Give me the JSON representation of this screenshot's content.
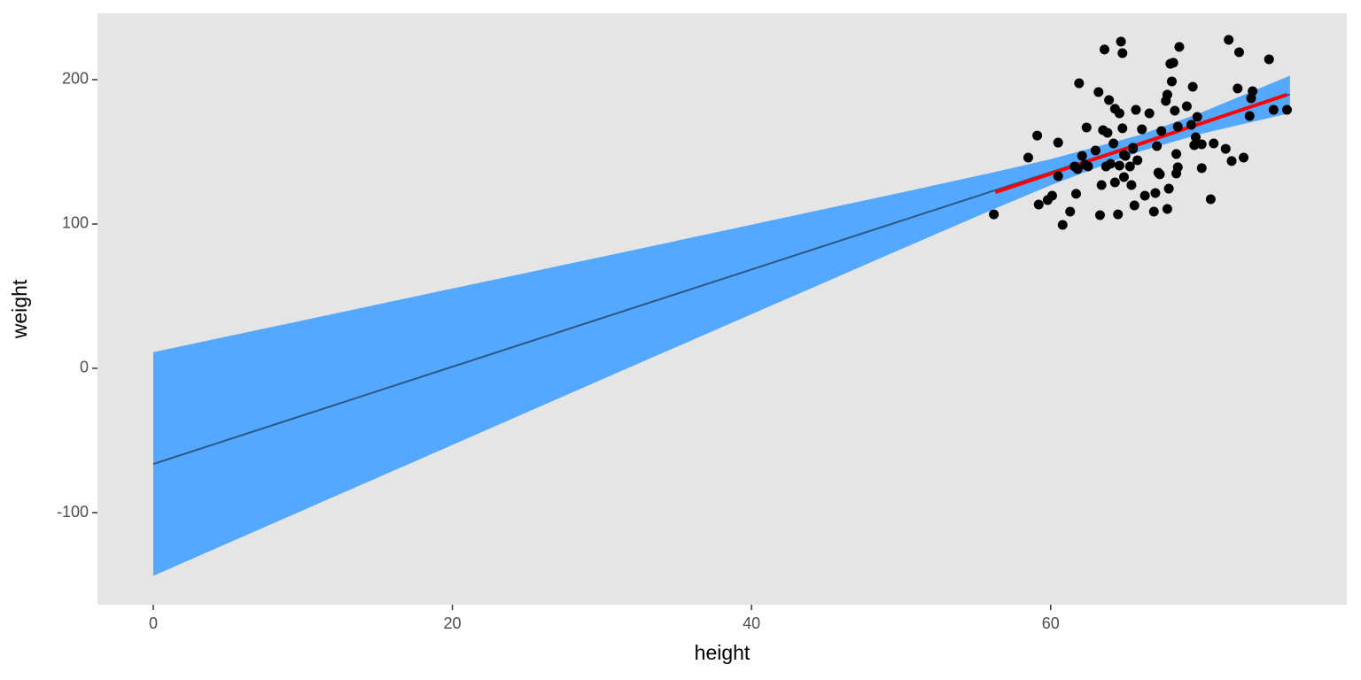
{
  "chart_data": {
    "type": "scatter",
    "xlabel": "height",
    "ylabel": "weight",
    "xlim": [
      -3.73,
      79.8
    ],
    "ylim": [
      -163.8,
      246
    ],
    "xticks": [
      0,
      20,
      40,
      60
    ],
    "yticks": [
      -100,
      0,
      100,
      200
    ],
    "background": "#e5e5e5",
    "layers": [
      {
        "type": "ribbon",
        "color": "#55a8ff",
        "x": [
          0,
          10,
          20,
          30,
          40,
          50,
          56,
          60,
          66,
          70,
          76
        ],
        "lower": [
          -143.8,
          -98.4,
          -53.1,
          -7.7,
          37.5,
          82.6,
          109.4,
          126.9,
          150.4,
          162.3,
          176.8
        ],
        "upper": [
          11.2,
          33.2,
          55.3,
          77.3,
          99.5,
          121.8,
          135.4,
          144.9,
          161.8,
          176.9,
          202.8
        ]
      },
      {
        "type": "line",
        "color": "#2a5784",
        "width": 2,
        "x": [
          0,
          76
        ],
        "values": [
          -66.3,
          189.8
        ]
      },
      {
        "type": "line",
        "color": "#ff0000",
        "width": 4,
        "x": [
          56.3,
          75.8
        ],
        "values": [
          122,
          189.6
        ]
      },
      {
        "type": "scatter",
        "color": "#000000",
        "x": [
          56.2,
          58.5,
          59.1,
          59.2,
          59.8,
          60.1,
          60.5,
          60.5,
          60.8,
          61.3,
          61.6,
          61.7,
          61.8,
          61.9,
          62.1,
          62.3,
          62.4,
          62.5,
          63.0,
          63.2,
          63.3,
          63.4,
          63.5,
          63.6,
          63.7,
          63.8,
          63.9,
          64.0,
          64.2,
          64.3,
          64.3,
          64.5,
          64.6,
          64.6,
          64.7,
          64.8,
          64.8,
          64.9,
          64.9,
          65.0,
          65.3,
          65.4,
          65.5,
          65.5,
          65.6,
          65.7,
          65.8,
          66.1,
          66.3,
          66.6,
          66.9,
          67.0,
          67.1,
          67.2,
          67.3,
          67.4,
          67.7,
          67.8,
          67.8,
          67.9,
          68.0,
          68.1,
          68.2,
          68.3,
          68.4,
          68.4,
          68.5,
          68.5,
          68.6,
          69.1,
          69.4,
          69.5,
          69.6,
          69.7,
          69.8,
          70.1,
          70.1,
          70.7,
          70.9,
          71.7,
          71.9,
          72.1,
          72.5,
          72.6,
          72.9,
          73.3,
          73.4,
          73.5,
          74.6,
          74.9,
          75.8
        ],
        "values": [
          106.7,
          146.0,
          161.3,
          113.5,
          116.6,
          119.6,
          156.4,
          133.1,
          99.4,
          108.6,
          139.9,
          120.9,
          138.0,
          197.5,
          147.2,
          141.1,
          166.9,
          139.9,
          150.9,
          191.4,
          106.1,
          127.0,
          165.0,
          220.9,
          139.9,
          163.2,
          185.9,
          141.7,
          155.8,
          128.8,
          179.8,
          106.7,
          176.7,
          140.5,
          226.4,
          218.4,
          166.3,
          147.9,
          132.5,
          147.2,
          139.9,
          127.0,
          152.8,
          152.1,
          112.9,
          179.1,
          144.2,
          165.6,
          119.6,
          176.7,
          108.6,
          121.5,
          154.0,
          135.6,
          134.4,
          164.4,
          185.3,
          110.4,
          189.6,
          124.5,
          211.0,
          198.8,
          211.7,
          178.5,
          135.0,
          148.5,
          139.3,
          167.5,
          222.7,
          181.6,
          168.7,
          195.1,
          154.6,
          160.1,
          174.2,
          138.7,
          155.2,
          117.2,
          155.8,
          152.1,
          227.6,
          143.6,
          193.9,
          219.0,
          146.0,
          174.8,
          187.1,
          192.0,
          214.1,
          179.1,
          179.1
        ]
      }
    ]
  }
}
